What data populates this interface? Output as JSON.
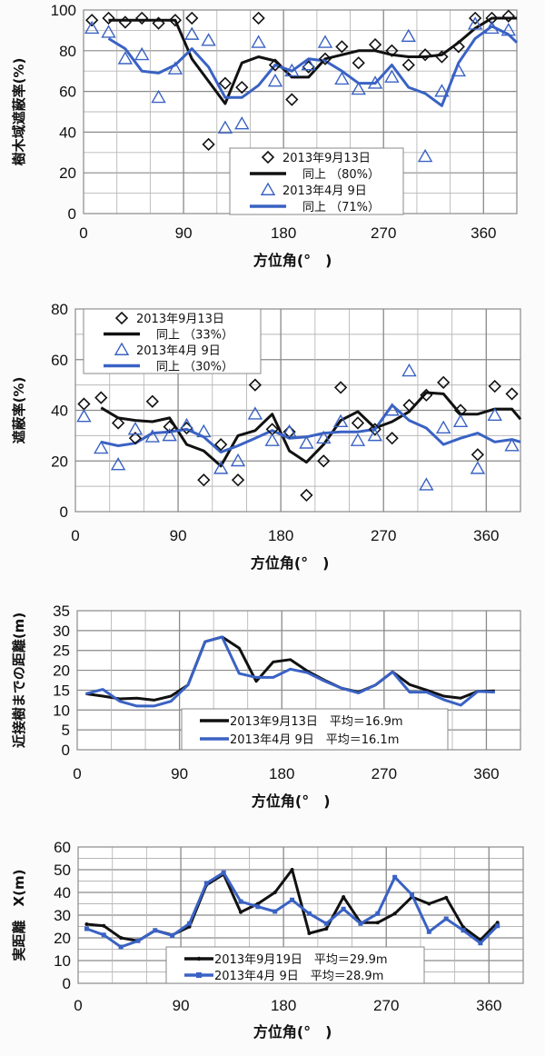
{
  "colors": {
    "black_series": "#111111",
    "blue_series": "#3a62c4",
    "grid": "#b8b8b8",
    "grid_major": "#8a8a8a"
  },
  "chart_data": [
    {
      "type": "line+scatter",
      "title": "",
      "xlabel": "方位角(°　)",
      "ylabel": "樹木域遮蔽率(%)",
      "xlim": [
        0,
        390
      ],
      "ylim": [
        0,
        100
      ],
      "xticks": [
        "0",
        "90",
        "180",
        "270",
        "360"
      ],
      "yticks": [
        "0",
        "20",
        "40",
        "60",
        "80",
        "100"
      ],
      "grid": true,
      "legend_position": "bottom-center",
      "scatter": [
        {
          "name": "2013年9月13日",
          "marker": "diamond",
          "color": "#111111",
          "x": [
            7.5,
            22.5,
            37.5,
            52.5,
            67.5,
            82.5,
            97.5,
            112.5,
            127.5,
            142.5,
            157.5,
            172.5,
            187.5,
            202.5,
            217.5,
            232.5,
            247.5,
            262.5,
            277.5,
            292.5,
            307.5,
            322.5,
            337.5,
            352.5,
            367.5,
            382.5
          ],
          "y": [
            95,
            96,
            94,
            96,
            93.5,
            95,
            96,
            34,
            64,
            62,
            96,
            73,
            56,
            72,
            76,
            82,
            74,
            83,
            80,
            73,
            78,
            77,
            82,
            96,
            96,
            97
          ]
        },
        {
          "name": "2013年4月 9日",
          "marker": "triangle",
          "color": "#3a62c4",
          "x": [
            7.5,
            22.5,
            37.5,
            52.5,
            67.5,
            82.5,
            97.5,
            112.5,
            127.5,
            142.5,
            157.5,
            172.5,
            187.5,
            202.5,
            217.5,
            232.5,
            247.5,
            262.5,
            277.5,
            292.5,
            307.5,
            322.5,
            337.5,
            352.5,
            367.5,
            382.5
          ],
          "y": [
            91,
            89,
            76,
            78,
            57,
            71,
            88,
            85,
            42,
            44,
            84,
            65,
            70,
            73,
            84,
            66,
            61,
            64,
            67,
            87,
            28,
            60,
            70,
            93,
            91,
            90
          ]
        }
      ],
      "lines": [
        {
          "name": "同上（80%）",
          "color": "#111111",
          "x": [
            22.5,
            37.5,
            52.5,
            67.5,
            82.5,
            97.5,
            112.5,
            127.5,
            142.5,
            157.5,
            172.5,
            187.5,
            202.5,
            217.5,
            232.5,
            247.5,
            262.5,
            277.5,
            292.5,
            307.5,
            322.5,
            337.5,
            352.5,
            367.5,
            382.5,
            390
          ],
          "y": [
            95,
            95,
            95,
            95,
            95,
            76,
            65,
            54,
            74,
            77,
            75,
            67,
            67,
            76,
            78,
            80,
            80,
            78,
            77,
            77,
            78,
            84,
            91,
            96,
            96,
            96
          ]
        },
        {
          "name": "同上（71%）",
          "color": "#3a62c4",
          "x": [
            22.5,
            37.5,
            52.5,
            67.5,
            82.5,
            97.5,
            112.5,
            127.5,
            142.5,
            157.5,
            172.5,
            187.5,
            202.5,
            217.5,
            232.5,
            247.5,
            262.5,
            277.5,
            292.5,
            307.5,
            322.5,
            337.5,
            352.5,
            367.5,
            382.5,
            390
          ],
          "y": [
            86,
            81,
            70,
            69,
            73,
            81,
            72,
            57,
            57,
            63,
            73,
            70,
            76,
            75,
            70,
            64,
            64,
            73,
            62,
            59,
            53,
            74,
            86,
            92,
            88,
            84
          ]
        }
      ],
      "legend": [
        {
          "label": "2013年9月13日",
          "kind": "diamond",
          "color": "#111111"
        },
        {
          "label": "同上 （80%）",
          "kind": "line",
          "color": "#111111"
        },
        {
          "label": "2013年4月 9日",
          "kind": "triangle",
          "color": "#3a62c4"
        },
        {
          "label": "同上 （71%）",
          "kind": "line",
          "color": "#3a62c4"
        }
      ]
    },
    {
      "type": "line+scatter",
      "title": "",
      "xlabel": "方位角(°　)",
      "ylabel": "遮蔽率(%)",
      "xlim": [
        0,
        390
      ],
      "ylim": [
        0,
        80
      ],
      "xticks": [
        "0",
        "90",
        "180",
        "270",
        "360"
      ],
      "yticks": [
        "0",
        "20",
        "40",
        "60",
        "80"
      ],
      "grid": true,
      "legend_position": "top-left",
      "scatter": [
        {
          "name": "2013年9月13日",
          "marker": "diamond",
          "color": "#111111",
          "x": [
            7.5,
            22.5,
            37.5,
            52.5,
            67.5,
            82.5,
            97.5,
            112.5,
            127.5,
            142.5,
            157.5,
            172.5,
            187.5,
            202.5,
            217.5,
            232.5,
            247.5,
            262.5,
            277.5,
            292.5,
            307.5,
            322.5,
            337.5,
            352.5,
            367.5,
            382.5
          ],
          "y": [
            42.5,
            45,
            35,
            29,
            43.5,
            33.5,
            33,
            12.5,
            26.5,
            12.5,
            50,
            32.5,
            31.5,
            6.5,
            20,
            49,
            35,
            32.5,
            29,
            42,
            46,
            51,
            40,
            22.5,
            49.5,
            46.5
          ]
        },
        {
          "name": "2013年4月 9日",
          "marker": "triangle",
          "color": "#3a62c4",
          "x": [
            7.5,
            22.5,
            37.5,
            52.5,
            67.5,
            82.5,
            97.5,
            112.5,
            127.5,
            142.5,
            157.5,
            172.5,
            187.5,
            202.5,
            217.5,
            232.5,
            247.5,
            262.5,
            277.5,
            292.5,
            307.5,
            322.5,
            337.5,
            352.5,
            367.5,
            382.5
          ],
          "y": [
            37.5,
            25,
            18.5,
            32.5,
            29.5,
            30,
            34,
            31.5,
            17,
            20,
            38.5,
            28,
            31.5,
            27,
            29,
            35.5,
            28,
            30,
            40,
            55.5,
            10.5,
            33,
            35.5,
            17,
            38,
            26
          ]
        }
      ],
      "lines": [
        {
          "name": "同上（33%）",
          "color": "#111111",
          "x": [
            22.5,
            37.5,
            52.5,
            67.5,
            82.5,
            97.5,
            112.5,
            127.5,
            142.5,
            157.5,
            172.5,
            187.5,
            202.5,
            217.5,
            232.5,
            247.5,
            262.5,
            277.5,
            292.5,
            307.5,
            322.5,
            337.5,
            352.5,
            367.5,
            382.5,
            390
          ],
          "y": [
            41,
            37,
            36,
            35.5,
            37,
            26.5,
            24,
            18,
            30,
            32,
            38.5,
            24,
            19.5,
            26.5,
            36,
            39.5,
            33,
            35.5,
            39.5,
            47,
            46.5,
            38.5,
            38.5,
            40.5,
            40.5,
            36.5
          ]
        },
        {
          "name": "同上（30%）",
          "color": "#3a62c4",
          "x": [
            22.5,
            37.5,
            52.5,
            67.5,
            82.5,
            97.5,
            112.5,
            127.5,
            142.5,
            157.5,
            172.5,
            187.5,
            202.5,
            217.5,
            232.5,
            247.5,
            262.5,
            277.5,
            292.5,
            307.5,
            322.5,
            337.5,
            352.5,
            367.5,
            382.5,
            390
          ],
          "y": [
            27.5,
            26,
            27,
            31,
            31.5,
            32.5,
            29.5,
            23.5,
            26,
            29,
            32,
            29,
            29.5,
            31,
            31.5,
            31.5,
            32.5,
            42,
            36,
            33,
            26.5,
            29,
            31,
            27.5,
            28.5,
            27.5
          ]
        }
      ],
      "legend": [
        {
          "label": "2013年9月13日",
          "kind": "diamond",
          "color": "#111111"
        },
        {
          "label": "同上 （33%）",
          "kind": "line",
          "color": "#111111"
        },
        {
          "label": "2013年4月 9日",
          "kind": "triangle",
          "color": "#3a62c4"
        },
        {
          "label": "同上 （30%）",
          "kind": "line",
          "color": "#3a62c4"
        }
      ]
    },
    {
      "type": "line",
      "title": "",
      "xlabel": "方位角(°　)",
      "ylabel": "近接樹までの距離(m)",
      "xlim": [
        0,
        390
      ],
      "ylim": [
        0,
        35
      ],
      "xticks": [
        "0",
        "90",
        "180",
        "270",
        "360"
      ],
      "yticks": [
        "0",
        "5",
        "10",
        "15",
        "20",
        "25",
        "30",
        "35"
      ],
      "grid": true,
      "legend_position": "bottom-center",
      "scatter": [],
      "lines": [
        {
          "name": "2013年9月13日　平均＝16.9m",
          "color": "#111111",
          "x": [
            7.5,
            22.5,
            37.5,
            52.5,
            67.5,
            82.5,
            97.5,
            112.5,
            127.5,
            142.5,
            157.5,
            172.5,
            187.5,
            202.5,
            217.5,
            232.5,
            247.5,
            262.5,
            277.5,
            292.5,
            307.5,
            322.5,
            337.5,
            352.5,
            367.5
          ],
          "y": [
            14.1,
            13.5,
            12.8,
            13,
            12.5,
            13.5,
            16.3,
            27.2,
            28.4,
            25.6,
            17.2,
            22.1,
            22.7,
            19.8,
            17.5,
            15.5,
            14.5,
            16.3,
            19.6,
            16.4,
            15,
            13.5,
            13,
            14.7,
            14.8
          ]
        },
        {
          "name": "2013年4月 9日　平均＝16.1m",
          "color": "#3a62c4",
          "x": [
            7.5,
            22.5,
            37.5,
            52.5,
            67.5,
            82.5,
            97.5,
            112.5,
            127.5,
            142.5,
            157.5,
            172.5,
            187.5,
            202.5,
            217.5,
            232.5,
            247.5,
            262.5,
            277.5,
            292.5,
            307.5,
            322.5,
            337.5,
            352.5,
            367.5
          ],
          "y": [
            14.1,
            15.2,
            12.2,
            11,
            11,
            12.2,
            16.3,
            27.2,
            28.4,
            19.2,
            18.2,
            18.2,
            20.3,
            19.4,
            17.3,
            15.5,
            14.3,
            16.3,
            19.6,
            14.5,
            14.5,
            12.6,
            11.2,
            14.7,
            14.5
          ]
        }
      ],
      "legend": [
        {
          "label": "2013年9月13日　平均＝16.9m",
          "kind": "line",
          "color": "#111111"
        },
        {
          "label": "2013年4月 9日　平均＝16.1m",
          "kind": "line",
          "color": "#3a62c4"
        }
      ]
    },
    {
      "type": "line",
      "title": "",
      "xlabel": "方位角(°　)",
      "ylabel": "実距離　X(m)",
      "xlim": [
        0,
        390
      ],
      "ylim": [
        0,
        60
      ],
      "xticks": [
        "0",
        "90",
        "180",
        "270",
        "360"
      ],
      "yticks": [
        "0",
        "10",
        "20",
        "30",
        "40",
        "50",
        "60"
      ],
      "grid": true,
      "legend_position": "bottom-center",
      "scatter": [],
      "lines": [
        {
          "name": "2013年9月19日　平均＝29.9m",
          "color": "#111111",
          "marker": "dot",
          "x": [
            7.5,
            22.5,
            37.5,
            52.5,
            67.5,
            82.5,
            97.5,
            112.5,
            127.5,
            142.5,
            157.5,
            172.5,
            187.5,
            202.5,
            217.5,
            232.5,
            247.5,
            262.5,
            277.5,
            292.5,
            307.5,
            322.5,
            337.5,
            352.5,
            367.5
          ],
          "y": [
            26,
            25.3,
            20,
            18.7,
            23.3,
            21.3,
            24.9,
            43.3,
            48,
            31.3,
            35,
            40,
            50,
            22,
            24,
            38,
            26.7,
            26.7,
            30.7,
            38,
            35,
            37.7,
            24.7,
            19.1,
            26.7
          ]
        },
        {
          "name": "2013年4月 9日　平均＝28.9m",
          "color": "#3a62c4",
          "marker": "square",
          "x": [
            7.5,
            22.5,
            37.5,
            52.5,
            67.5,
            82.5,
            97.5,
            112.5,
            127.5,
            142.5,
            157.5,
            172.5,
            187.5,
            202.5,
            217.5,
            232.5,
            247.5,
            262.5,
            277.5,
            292.5,
            307.5,
            322.5,
            337.5,
            352.5,
            367.5
          ],
          "y": [
            24,
            21.3,
            16,
            18.7,
            23.3,
            21,
            26.3,
            44,
            48.7,
            36,
            33.7,
            31.6,
            36.7,
            30.7,
            26.3,
            32.7,
            26.3,
            30.7,
            46.7,
            39,
            22.7,
            28.4,
            23.3,
            17.7,
            25.3
          ]
        }
      ],
      "legend": [
        {
          "label": "2013年9月19日　平均＝29.9m",
          "kind": "line-dot",
          "color": "#111111"
        },
        {
          "label": "2013年4月 9日　平均＝28.9m",
          "kind": "line-square",
          "color": "#3a62c4"
        }
      ]
    }
  ]
}
